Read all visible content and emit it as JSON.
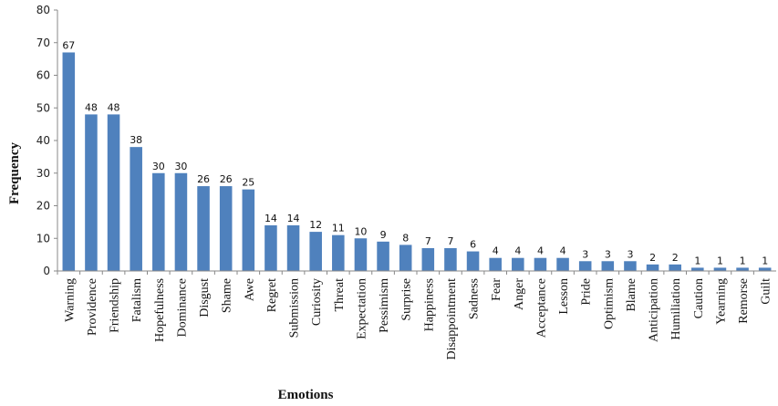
{
  "chart_data": {
    "type": "bar",
    "title": "",
    "xlabel": "Emotions",
    "ylabel": "Frequency",
    "ylim": [
      0,
      80
    ],
    "yticks": [
      0,
      10,
      20,
      30,
      40,
      50,
      60,
      70,
      80
    ],
    "bar_color": "#4f81bd",
    "grid": false,
    "legend": "none",
    "categories": [
      "Warning",
      "Providence",
      "Friendship",
      "Fatalism",
      "Hopefulness",
      "Dominance",
      "Disgust",
      "Shame",
      "Awe",
      "Regret",
      "Submission",
      "Curiosity",
      "Threat",
      "Expectation",
      "Pessimism",
      "Surprise",
      "Happiness",
      "Disappointment",
      "Sadness",
      "Fear",
      "Anger",
      "Acceptance",
      "Lesson",
      "Pride",
      "Optimism",
      "Blame",
      "Anticipation",
      "Humiliation",
      "Caution",
      "Yearning",
      "Remorse",
      "Guilt"
    ],
    "values": [
      67,
      48,
      48,
      38,
      30,
      30,
      26,
      26,
      25,
      14,
      14,
      12,
      11,
      10,
      9,
      8,
      7,
      7,
      6,
      4,
      4,
      4,
      4,
      3,
      3,
      3,
      2,
      2,
      1,
      1,
      1,
      1
    ]
  }
}
